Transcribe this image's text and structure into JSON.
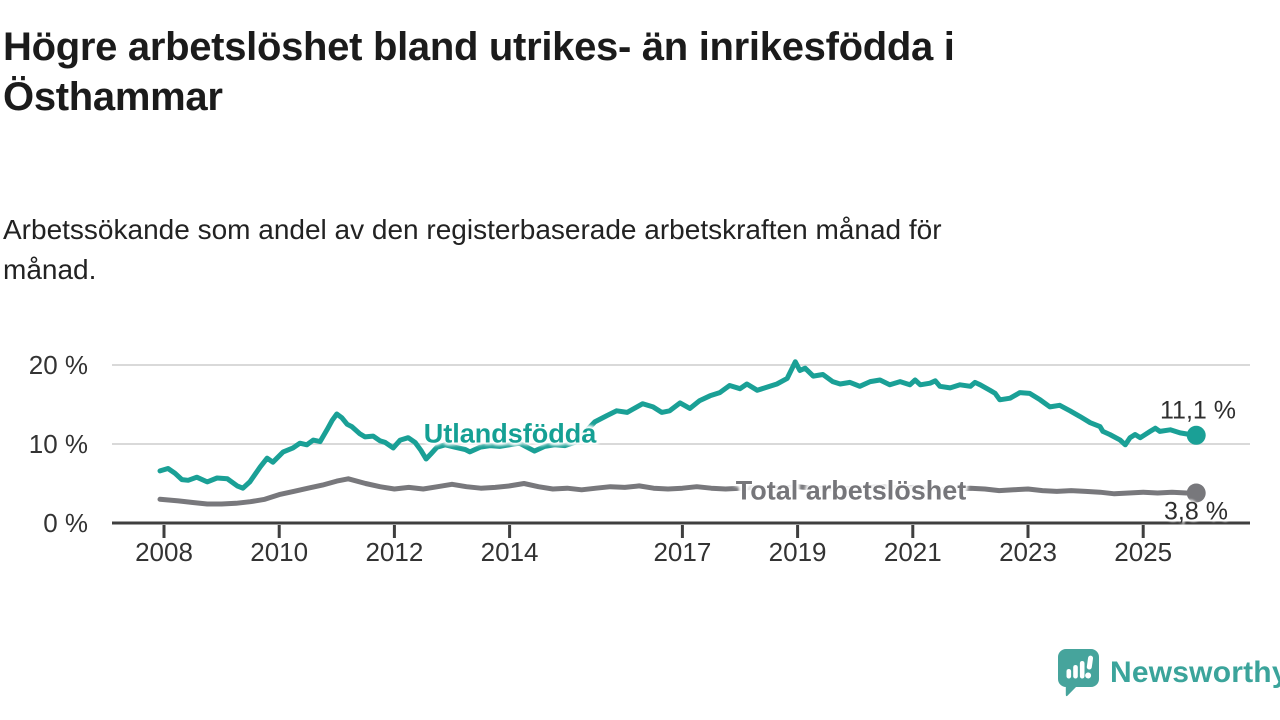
{
  "header": {
    "title_lines": [
      "Högre arbetslöshet bland utrikes- än inrikesfödda i",
      "Östhammar"
    ],
    "subtitle_lines": [
      "Arbetssökande som andel av den registerbaserade arbetskraften månad för",
      "månad."
    ]
  },
  "colors": {
    "accent_teal": "#1aa096",
    "line_gray": "#78787c",
    "grid": "#d9d9d9",
    "axis": "#3f3f3f",
    "axis_text": "#333333",
    "logo_teal": "#46a49c",
    "logo_text_teal": "#3ba49b"
  },
  "footer": {
    "brand": "Newsworthy"
  },
  "chart_data": {
    "type": "line",
    "title": "Högre arbetslöshet bland utrikes- än inrikesfödda i Östhammar",
    "subtitle": "Arbetssökande som andel av den registerbaserade arbetskraften månad för månad.",
    "grid": "horizontal",
    "legend_position": "inline-labels",
    "x_axis": {
      "ticks": [
        2008,
        2010,
        2012,
        2014,
        2017,
        2019,
        2021,
        2023,
        2025
      ],
      "tick_labels": [
        "2008",
        "2010",
        "2012",
        "2014",
        "2017",
        "2019",
        "2021",
        "2023",
        "2025"
      ],
      "range": [
        2007.9,
        2026.3
      ]
    },
    "y_axis": {
      "ticks": [
        0,
        10,
        20
      ],
      "tick_labels": [
        "0 %",
        "10 %",
        "20 %"
      ],
      "range": [
        0,
        21
      ],
      "unit": "%"
    },
    "series": [
      {
        "name": "Utlandsfödda",
        "color": "#1aa096",
        "end_label": "11,1 %",
        "end_value": 11.1,
        "points": [
          [
            2007.93,
            6.6
          ],
          [
            2008.07,
            6.9
          ],
          [
            2008.19,
            6.3
          ],
          [
            2008.31,
            5.5
          ],
          [
            2008.42,
            5.4
          ],
          [
            2008.57,
            5.8
          ],
          [
            2008.75,
            5.2
          ],
          [
            2008.92,
            5.7
          ],
          [
            2009.1,
            5.6
          ],
          [
            2009.27,
            4.7
          ],
          [
            2009.37,
            4.4
          ],
          [
            2009.49,
            5.2
          ],
          [
            2009.67,
            7.1
          ],
          [
            2009.79,
            8.2
          ],
          [
            2009.89,
            7.7
          ],
          [
            2010.07,
            9.0
          ],
          [
            2010.24,
            9.5
          ],
          [
            2010.36,
            10.1
          ],
          [
            2010.48,
            9.9
          ],
          [
            2010.59,
            10.5
          ],
          [
            2010.71,
            10.3
          ],
          [
            2010.83,
            11.8
          ],
          [
            2010.92,
            13.0
          ],
          [
            2011.0,
            13.8
          ],
          [
            2011.09,
            13.3
          ],
          [
            2011.18,
            12.5
          ],
          [
            2011.26,
            12.2
          ],
          [
            2011.4,
            11.3
          ],
          [
            2011.49,
            10.9
          ],
          [
            2011.63,
            11.0
          ],
          [
            2011.75,
            10.4
          ],
          [
            2011.84,
            10.2
          ],
          [
            2011.98,
            9.5
          ],
          [
            2012.1,
            10.5
          ],
          [
            2012.24,
            10.8
          ],
          [
            2012.36,
            10.2
          ],
          [
            2012.46,
            9.2
          ],
          [
            2012.55,
            8.1
          ],
          [
            2012.64,
            8.8
          ],
          [
            2012.74,
            9.6
          ],
          [
            2012.88,
            9.9
          ],
          [
            2013.05,
            9.6
          ],
          [
            2013.23,
            9.3
          ],
          [
            2013.31,
            9.0
          ],
          [
            2013.49,
            9.6
          ],
          [
            2013.66,
            9.8
          ],
          [
            2013.83,
            9.7
          ],
          [
            2014.0,
            9.9
          ],
          [
            2014.17,
            10.1
          ],
          [
            2014.43,
            9.1
          ],
          [
            2014.61,
            9.7
          ],
          [
            2014.78,
            9.9
          ],
          [
            2014.96,
            9.8
          ],
          [
            2015.13,
            10.2
          ],
          [
            2015.31,
            11.5
          ],
          [
            2015.48,
            12.8
          ],
          [
            2015.69,
            13.6
          ],
          [
            2015.86,
            14.2
          ],
          [
            2016.04,
            14.0
          ],
          [
            2016.21,
            14.7
          ],
          [
            2016.31,
            15.1
          ],
          [
            2016.49,
            14.7
          ],
          [
            2016.64,
            14.0
          ],
          [
            2016.78,
            14.2
          ],
          [
            2016.96,
            15.2
          ],
          [
            2017.13,
            14.5
          ],
          [
            2017.3,
            15.5
          ],
          [
            2017.48,
            16.1
          ],
          [
            2017.65,
            16.5
          ],
          [
            2017.82,
            17.4
          ],
          [
            2018.0,
            17.0
          ],
          [
            2018.12,
            17.6
          ],
          [
            2018.3,
            16.8
          ],
          [
            2018.47,
            17.2
          ],
          [
            2018.64,
            17.6
          ],
          [
            2018.82,
            18.3
          ],
          [
            2018.96,
            20.4
          ],
          [
            2019.04,
            19.3
          ],
          [
            2019.13,
            19.6
          ],
          [
            2019.27,
            18.6
          ],
          [
            2019.44,
            18.8
          ],
          [
            2019.61,
            17.9
          ],
          [
            2019.74,
            17.6
          ],
          [
            2019.91,
            17.8
          ],
          [
            2020.08,
            17.3
          ],
          [
            2020.26,
            17.9
          ],
          [
            2020.43,
            18.1
          ],
          [
            2020.6,
            17.5
          ],
          [
            2020.78,
            17.9
          ],
          [
            2020.95,
            17.5
          ],
          [
            2021.04,
            18.1
          ],
          [
            2021.13,
            17.5
          ],
          [
            2021.3,
            17.7
          ],
          [
            2021.39,
            18.0
          ],
          [
            2021.47,
            17.3
          ],
          [
            2021.65,
            17.1
          ],
          [
            2021.82,
            17.5
          ],
          [
            2022.0,
            17.3
          ],
          [
            2022.08,
            17.8
          ],
          [
            2022.17,
            17.5
          ],
          [
            2022.34,
            16.8
          ],
          [
            2022.43,
            16.4
          ],
          [
            2022.51,
            15.6
          ],
          [
            2022.69,
            15.8
          ],
          [
            2022.86,
            16.5
          ],
          [
            2023.03,
            16.4
          ],
          [
            2023.21,
            15.6
          ],
          [
            2023.38,
            14.7
          ],
          [
            2023.55,
            14.9
          ],
          [
            2023.73,
            14.2
          ],
          [
            2023.9,
            13.5
          ],
          [
            2024.08,
            12.7
          ],
          [
            2024.25,
            12.2
          ],
          [
            2024.3,
            11.6
          ],
          [
            2024.42,
            11.2
          ],
          [
            2024.6,
            10.5
          ],
          [
            2024.69,
            9.9
          ],
          [
            2024.77,
            10.8
          ],
          [
            2024.86,
            11.2
          ],
          [
            2024.95,
            10.8
          ],
          [
            2025.12,
            11.6
          ],
          [
            2025.21,
            12.0
          ],
          [
            2025.29,
            11.6
          ],
          [
            2025.47,
            11.8
          ],
          [
            2025.64,
            11.4
          ],
          [
            2025.81,
            11.2
          ],
          [
            2025.92,
            11.1
          ]
        ]
      },
      {
        "name": "Total arbetslöshet",
        "color": "#78787c",
        "end_label": "3,8 %",
        "end_value": 3.8,
        "points": [
          [
            2007.93,
            3.0
          ],
          [
            2008.25,
            2.8
          ],
          [
            2008.5,
            2.6
          ],
          [
            2008.75,
            2.4
          ],
          [
            2009.0,
            2.4
          ],
          [
            2009.25,
            2.5
          ],
          [
            2009.5,
            2.7
          ],
          [
            2009.75,
            3.0
          ],
          [
            2010.0,
            3.6
          ],
          [
            2010.25,
            4.0
          ],
          [
            2010.5,
            4.4
          ],
          [
            2010.75,
            4.8
          ],
          [
            2011.0,
            5.3
          ],
          [
            2011.2,
            5.6
          ],
          [
            2011.5,
            5.0
          ],
          [
            2011.75,
            4.6
          ],
          [
            2012.0,
            4.3
          ],
          [
            2012.25,
            4.5
          ],
          [
            2012.5,
            4.3
          ],
          [
            2012.75,
            4.6
          ],
          [
            2013.0,
            4.9
          ],
          [
            2013.25,
            4.6
          ],
          [
            2013.5,
            4.4
          ],
          [
            2013.75,
            4.5
          ],
          [
            2014.0,
            4.7
          ],
          [
            2014.25,
            5.0
          ],
          [
            2014.5,
            4.6
          ],
          [
            2014.75,
            4.3
          ],
          [
            2015.0,
            4.4
          ],
          [
            2015.25,
            4.2
          ],
          [
            2015.5,
            4.4
          ],
          [
            2015.75,
            4.6
          ],
          [
            2016.0,
            4.5
          ],
          [
            2016.25,
            4.7
          ],
          [
            2016.5,
            4.4
          ],
          [
            2016.75,
            4.3
          ],
          [
            2017.0,
            4.4
          ],
          [
            2017.25,
            4.6
          ],
          [
            2017.5,
            4.4
          ],
          [
            2017.75,
            4.3
          ],
          [
            2018.0,
            4.4
          ],
          [
            2018.25,
            4.5
          ],
          [
            2018.5,
            4.3
          ],
          [
            2018.75,
            4.4
          ],
          [
            2019.0,
            4.6
          ],
          [
            2019.25,
            4.4
          ],
          [
            2019.5,
            4.3
          ],
          [
            2019.75,
            4.4
          ],
          [
            2020.0,
            4.3
          ],
          [
            2020.25,
            4.5
          ],
          [
            2020.5,
            4.6
          ],
          [
            2020.75,
            4.4
          ],
          [
            2021.0,
            4.5
          ],
          [
            2021.25,
            4.4
          ],
          [
            2021.5,
            4.2
          ],
          [
            2021.75,
            4.3
          ],
          [
            2022.0,
            4.4
          ],
          [
            2022.25,
            4.3
          ],
          [
            2022.5,
            4.1
          ],
          [
            2022.75,
            4.2
          ],
          [
            2023.0,
            4.3
          ],
          [
            2023.25,
            4.1
          ],
          [
            2023.5,
            4.0
          ],
          [
            2023.75,
            4.1
          ],
          [
            2024.0,
            4.0
          ],
          [
            2024.25,
            3.9
          ],
          [
            2024.5,
            3.7
          ],
          [
            2024.75,
            3.8
          ],
          [
            2025.0,
            3.9
          ],
          [
            2025.25,
            3.8
          ],
          [
            2025.5,
            3.9
          ],
          [
            2025.75,
            3.8
          ],
          [
            2025.92,
            3.8
          ]
        ]
      }
    ]
  }
}
